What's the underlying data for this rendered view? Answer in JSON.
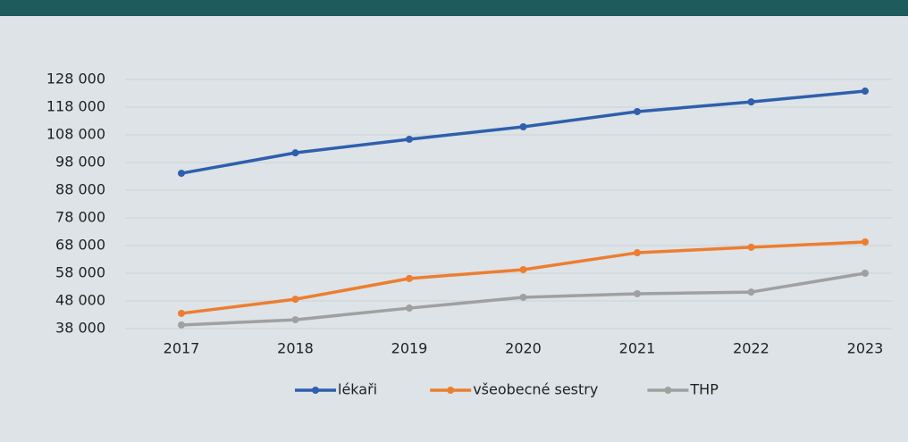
{
  "chart_data": {
    "type": "line",
    "categories": [
      "2017",
      "2018",
      "2019",
      "2020",
      "2021",
      "2022",
      "2023"
    ],
    "series": [
      {
        "name": "lékaři",
        "color": "#2f5fad",
        "values": [
          94100,
          101500,
          106400,
          110900,
          116400,
          119900,
          123800
        ]
      },
      {
        "name": "všeobecné sestry",
        "color": "#ed7d31",
        "values": [
          43500,
          48600,
          56100,
          59300,
          65400,
          67400,
          69300
        ]
      },
      {
        "name": "THP",
        "color": "#a0a0a0",
        "values": [
          39300,
          41200,
          45400,
          49300,
          50600,
          51200,
          58000
        ]
      }
    ],
    "ylim": [
      38000,
      128000
    ],
    "yticks": [
      {
        "value": 38000,
        "label": "38 000"
      },
      {
        "value": 48000,
        "label": "48 000"
      },
      {
        "value": 58000,
        "label": "58 000"
      },
      {
        "value": 68000,
        "label": "68 000"
      },
      {
        "value": 78000,
        "label": "78 000"
      },
      {
        "value": 88000,
        "label": "88 000"
      },
      {
        "value": 98000,
        "label": "98 000"
      },
      {
        "value": 108000,
        "label": "108 000"
      },
      {
        "value": 118000,
        "label": "118 000"
      },
      {
        "value": 128000,
        "label": "128 000"
      }
    ],
    "grid": true,
    "legend": "bottom"
  }
}
